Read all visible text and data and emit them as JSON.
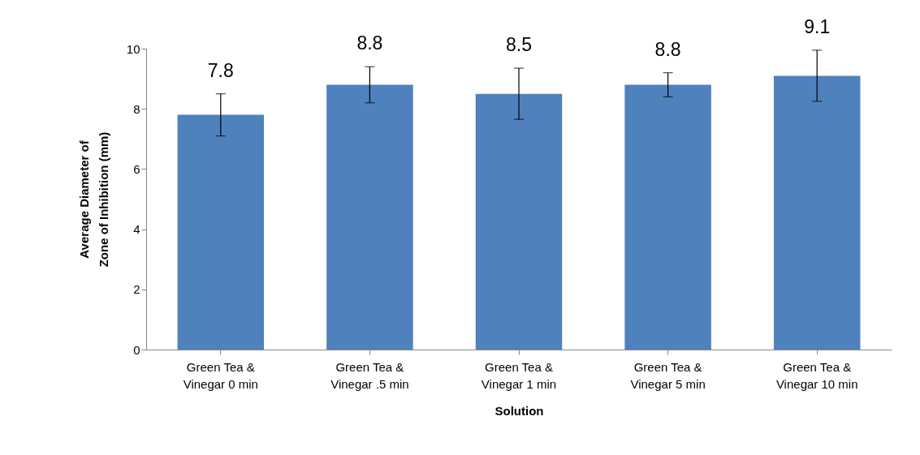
{
  "chart_data": {
    "type": "bar",
    "xlabel": "Solution",
    "ylabel": "Average Diameter of Zone of Inhibition (mm)",
    "categories": [
      "Green Tea & Vinegar 0 min",
      "Green Tea & Vinegar .5 min",
      "Green Tea & Vinegar 1 min",
      "Green Tea & Vinegar 5 min",
      "Green Tea & Vinegar 10 min"
    ],
    "values": [
      7.8,
      8.8,
      8.5,
      8.8,
      9.1
    ],
    "errors": [
      0.7,
      0.6,
      0.85,
      0.4,
      0.85
    ],
    "color": "#4f81bd",
    "data_labels": true,
    "ylim": [
      0,
      10
    ],
    "yticks": [
      0,
      2,
      4,
      6,
      8,
      10
    ],
    "grid": false
  }
}
